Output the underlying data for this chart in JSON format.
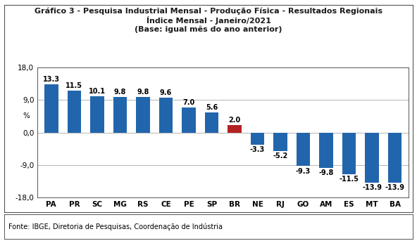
{
  "title_line1": "Gráfico 3 - Pesquisa Industrial Mensal - Produção Física - Resultados Regionais",
  "title_line2": "Índice Mensal - Janeiro/2021",
  "title_line3": "(Base: igual mês do ano anterior)",
  "categories": [
    "PA",
    "PR",
    "SC",
    "MG",
    "RS",
    "CE",
    "PE",
    "SP",
    "BR",
    "NE",
    "RJ",
    "GO",
    "AM",
    "ES",
    "MT",
    "BA"
  ],
  "values": [
    13.3,
    11.5,
    10.1,
    9.8,
    9.8,
    9.6,
    7.0,
    5.6,
    2.0,
    -3.3,
    -5.2,
    -9.3,
    -9.8,
    -11.5,
    -13.9,
    -13.9
  ],
  "bar_colors": [
    "#2166AC",
    "#2166AC",
    "#2166AC",
    "#2166AC",
    "#2166AC",
    "#2166AC",
    "#2166AC",
    "#2166AC",
    "#B22222",
    "#2166AC",
    "#2166AC",
    "#2166AC",
    "#2166AC",
    "#2166AC",
    "#2166AC",
    "#2166AC"
  ],
  "ylabel": "%",
  "ylim": [
    -18.0,
    18.0
  ],
  "yticks": [
    -18.0,
    -9.0,
    0.0,
    9.0,
    18.0
  ],
  "ytick_labels": [
    "-18,0",
    "-9,0",
    "0,0",
    "9,0",
    "18,0"
  ],
  "footnote": "Fonte: IBGE, Diretoria de Pesquisas, Coordenação de Indústria",
  "background_color": "#FFFFFF",
  "grid_color": "#AAAAAA",
  "title_fontsize": 8.0,
  "label_fontsize": 7.0,
  "tick_fontsize": 7.5,
  "ylabel_fontsize": 7.5,
  "bar_width": 0.6
}
